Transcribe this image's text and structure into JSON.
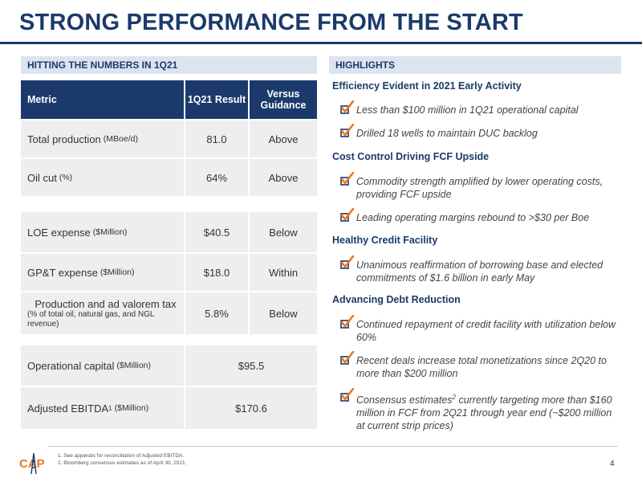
{
  "title": "STRONG PERFORMANCE FROM THE START",
  "left_section": "HITTING THE NUMBERS IN 1Q21",
  "right_section": "HIGHLIGHTS",
  "table": {
    "headers": {
      "metric": "Metric",
      "result": "1Q21 Result",
      "guidance": "Versus Guidance"
    },
    "rows": [
      {
        "metric": "Total production",
        "unit": "(MBoe/d)",
        "result": "81.0",
        "guidance": "Above"
      },
      {
        "metric": "Oil cut",
        "unit": "(%)",
        "result": "64%",
        "guidance": "Above"
      },
      {
        "metric": "LOE expense",
        "unit": "($Million)",
        "result": "$40.5",
        "guidance": "Below"
      },
      {
        "metric": "GP&T expense",
        "unit": "($Million)",
        "result": "$18.0",
        "guidance": "Within"
      },
      {
        "metric": "Production and ad valorem tax",
        "unit": "(% of total oil, natural gas, and NGL revenue)",
        "result": "5.8%",
        "guidance": "Below"
      },
      {
        "metric": "Operational capital",
        "unit": "($Million)",
        "result": "$95.5"
      },
      {
        "metric": "Adjusted EBITDA",
        "sup": "1",
        "unit": "($Million)",
        "result": "$170.6"
      }
    ]
  },
  "highlights": [
    {
      "heading": "Efficiency Evident in 2021 Early Activity",
      "bullets": [
        "Less than $100 million in 1Q21 operational capital",
        "Drilled 18 wells to maintain DUC backlog"
      ]
    },
    {
      "heading": "Cost Control Driving FCF Upside",
      "bullets": [
        "Commodity strength amplified by lower operating costs, providing FCF upside",
        "Leading operating margins rebound to >$30 per Boe"
      ]
    },
    {
      "heading": "Healthy Credit Facility",
      "bullets": [
        "Unanimous reaffirmation of borrowing base and elected commitments of $1.6 billion in early May"
      ]
    },
    {
      "heading": "Advancing Debt Reduction",
      "bullets": [
        "Continued repayment of credit facility with utilization below 60%",
        "Recent deals increase total monetizations since 2Q20 to more than $200 million"
      ],
      "last_bullet": {
        "pre": "Consensus estimates",
        "sup": "2",
        "post": " currently targeting more than $160 million in FCF from 2Q21 through year end (~$200 million at current strip prices)"
      }
    }
  ],
  "footnotes": [
    "1.  See appendix for reconciliation of Adjusted EBITDA.",
    "2.  Bloomberg consensus estimates as of April 30, 2021."
  ],
  "logo_text": "CAP",
  "page_number": "4",
  "colors": {
    "navy": "#1b3a6b",
    "check": "#e87722",
    "band": "#dce4f0"
  }
}
